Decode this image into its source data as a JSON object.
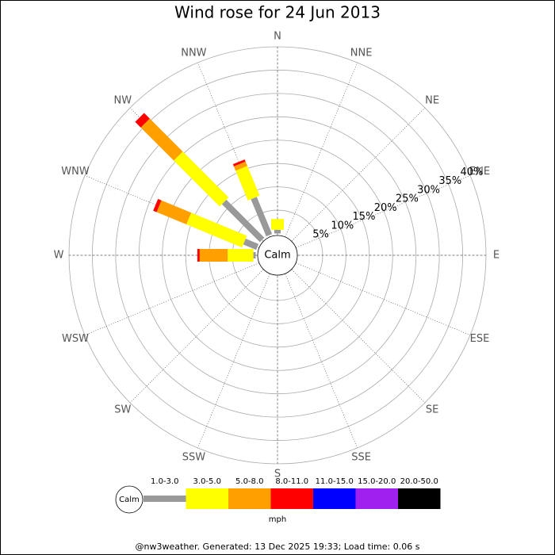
{
  "chart_data": {
    "type": "windrose",
    "title": "Wind rose for 24 Jun 2013",
    "categories": [
      "N",
      "NNE",
      "NE",
      "ENE",
      "E",
      "ESE",
      "SE",
      "SSE",
      "S",
      "SSW",
      "SW",
      "WSW",
      "W",
      "WNW",
      "NW",
      "NNW"
    ],
    "series": [
      {
        "name": "1.0-3.0",
        "color": "#999999",
        "values": [
          0.8,
          0,
          0,
          0,
          0,
          0,
          0,
          0,
          0,
          0,
          0,
          0,
          0.5,
          3,
          11.5,
          8.6
        ]
      },
      {
        "name": "3.0-5.0",
        "color": "#ffff00",
        "values": [
          2.3,
          0,
          0,
          0,
          0,
          0,
          0,
          0,
          0,
          0,
          0,
          0,
          5.5,
          12.9,
          13.9,
          6.9
        ]
      },
      {
        "name": "5.0-8.0",
        "color": "#ffa000",
        "values": [
          0,
          0,
          0,
          0,
          0,
          0,
          0,
          0,
          0,
          0,
          0,
          0,
          6,
          6.9,
          10,
          1
        ]
      },
      {
        "name": "8.0-11.0",
        "color": "#ff0000",
        "values": [
          0,
          0,
          0,
          0,
          0,
          0,
          0,
          0,
          0,
          0,
          0,
          0,
          0.5,
          0.8,
          1.7,
          0.5
        ]
      },
      {
        "name": "11.0-15.0",
        "color": "#0000ff",
        "values": [
          0,
          0,
          0,
          0,
          0,
          0,
          0,
          0,
          0,
          0,
          0,
          0,
          0,
          0,
          0,
          0
        ]
      },
      {
        "name": "15.0-20.0",
        "color": "#a020f0",
        "values": [
          0,
          0,
          0,
          0,
          0,
          0,
          0,
          0,
          0,
          0,
          0,
          0,
          0,
          0,
          0,
          0
        ]
      },
      {
        "name": "20.0-50.0",
        "color": "#000000",
        "values": [
          0,
          0,
          0,
          0,
          0,
          0,
          0,
          0,
          0,
          0,
          0,
          0,
          0,
          0,
          0,
          0
        ]
      }
    ],
    "rlim": [
      0,
      40
    ],
    "rticks": [
      {
        "value": 5,
        "label": "5%"
      },
      {
        "value": 10,
        "label": "10%"
      },
      {
        "value": 15,
        "label": "15%"
      },
      {
        "value": 20,
        "label": "20%"
      },
      {
        "value": 25,
        "label": "25%"
      },
      {
        "value": 30,
        "label": "30%"
      },
      {
        "value": 35,
        "label": "35%"
      },
      {
        "value": 40,
        "label": "40%"
      }
    ],
    "calm_label": "Calm",
    "legend_unit": "mph",
    "footer": "@nw3weather. Generated: 13 Dec 2025 19:33; Load time: 0.06 s"
  }
}
